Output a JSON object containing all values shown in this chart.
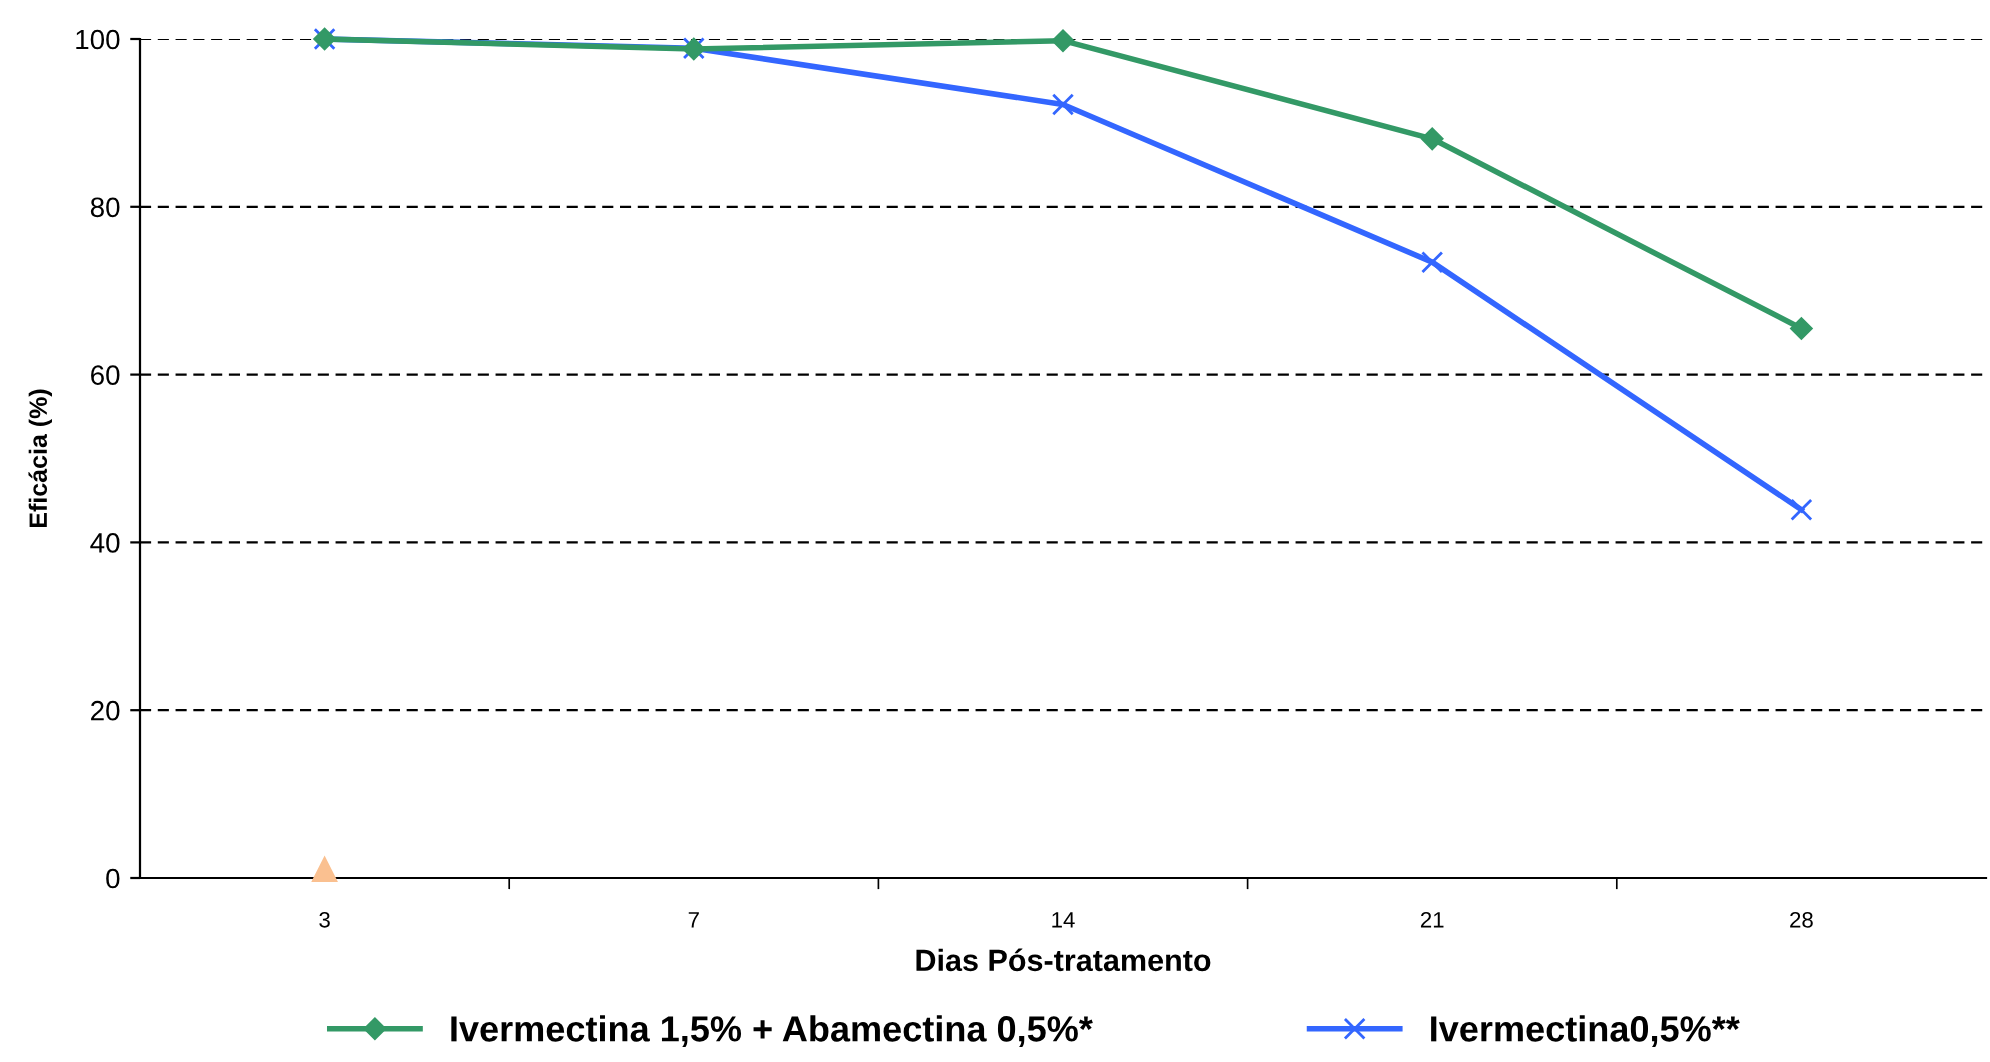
{
  "chart_data": {
    "type": "line",
    "xlabel": "Dias Pós-tratamento",
    "ylabel": "Eficácia (%)",
    "categories": [
      "3",
      "7",
      "14",
      "21",
      "28"
    ],
    "series": [
      {
        "name": "Ivermectina 1,5% + Abamectina 0,5%*",
        "color": "#339966",
        "marker": "diamond",
        "values": [
          100,
          98.8,
          99.8,
          88.1,
          65.5
        ]
      },
      {
        "name": "Ivermectina0,5%**",
        "color": "#3366ff",
        "marker": "cross",
        "values": [
          100,
          98.9,
          92.2,
          73.4,
          43.9
        ]
      },
      {
        "type": "scatter",
        "color": "#fac090",
        "marker": "triangle",
        "values": [
          1,
          null,
          null,
          null,
          null
        ]
      }
    ],
    "ylim": [
      0,
      100
    ],
    "yticks": [
      0,
      20,
      40,
      60,
      80,
      100
    ],
    "grid": "y",
    "legend": "bottom"
  }
}
